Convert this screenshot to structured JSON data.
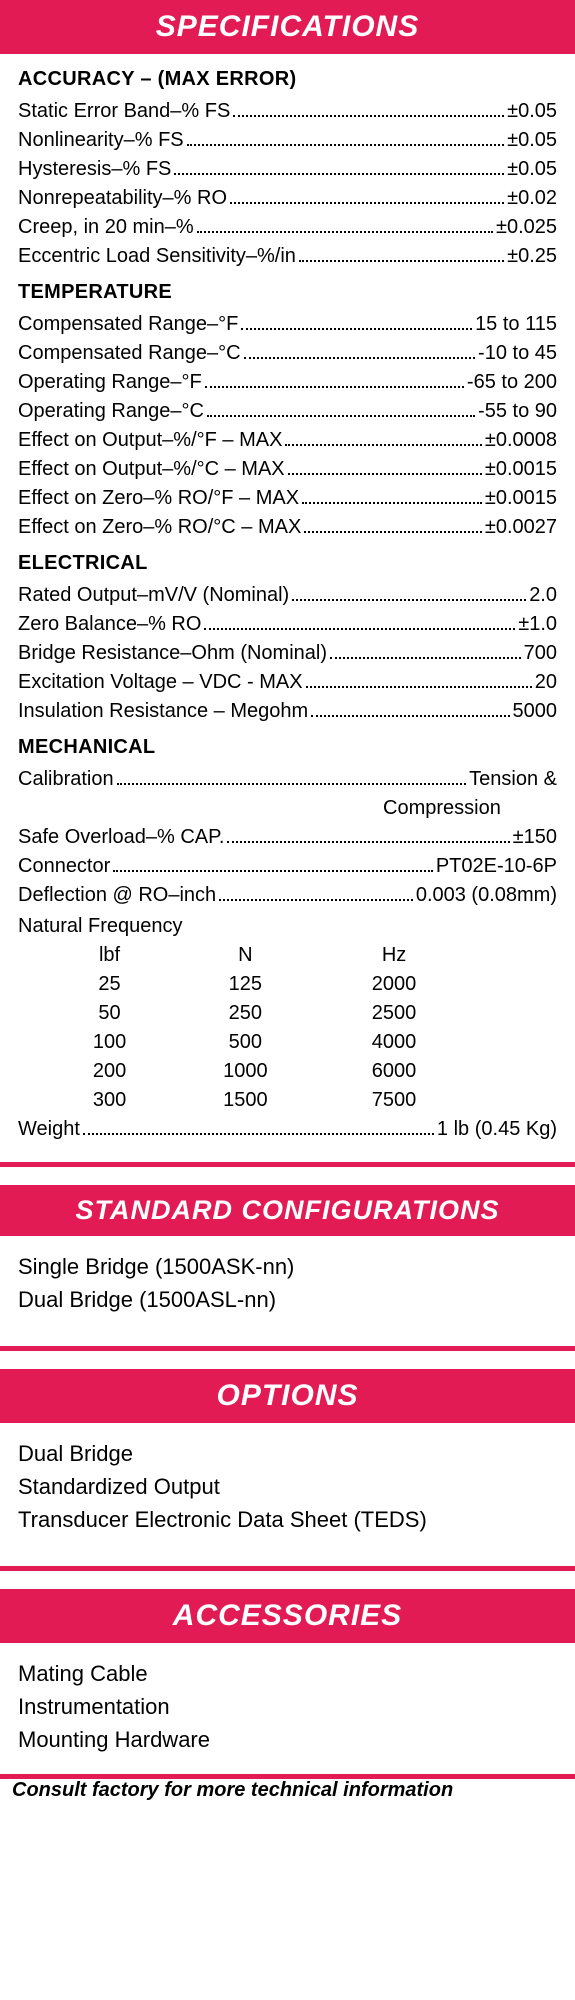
{
  "headers": {
    "specifications": "SPECIFICATIONS",
    "standard_config": "STANDARD CONFIGURATIONS",
    "options": "OPTIONS",
    "accessories": "ACCESSORIES"
  },
  "accuracy": {
    "title": "ACCURACY – (MAX ERROR)",
    "rows": [
      {
        "label": "Static Error Band–% FS",
        "value": "±0.05"
      },
      {
        "label": "Nonlinearity–% FS",
        "value": "±0.05"
      },
      {
        "label": "Hysteresis–% FS",
        "value": "±0.05"
      },
      {
        "label": "Nonrepeatability–% RO",
        "value": "±0.02"
      },
      {
        "label": "Creep, in 20 min–%",
        "value": "±0.025"
      },
      {
        "label": "Eccentric Load Sensitivity–%/in",
        "value": "±0.25"
      }
    ]
  },
  "temperature": {
    "title": "TEMPERATURE",
    "rows": [
      {
        "label": "Compensated Range–°F",
        "value": "15 to 115"
      },
      {
        "label": "Compensated Range–°C",
        "value": "-10 to 45"
      },
      {
        "label": "Operating Range–°F",
        "value": "-65 to 200"
      },
      {
        "label": "Operating Range–°C",
        "value": "-55 to 90"
      },
      {
        "label": "Effect on Output–%/°F – MAX",
        "value": "±0.0008"
      },
      {
        "label": "Effect on Output–%/°C – MAX",
        "value": "±0.0015"
      },
      {
        "label": "Effect on Zero–% RO/°F – MAX",
        "value": "±0.0015"
      },
      {
        "label": "Effect on Zero–% RO/°C – MAX",
        "value": "±0.0027"
      }
    ]
  },
  "electrical": {
    "title": "ELECTRICAL",
    "rows": [
      {
        "label": "Rated Output–mV/V (Nominal)",
        "value": "2.0"
      },
      {
        "label": "Zero Balance–% RO",
        "value": "±1.0"
      },
      {
        "label": "Bridge Resistance–Ohm (Nominal)",
        "value": "700"
      },
      {
        "label": "Excitation Voltage – VDC - MAX",
        "value": "20"
      },
      {
        "label": "Insulation Resistance – Megohm",
        "value": "5000"
      }
    ]
  },
  "mechanical": {
    "title": "MECHANICAL",
    "calibration": {
      "label": "Calibration",
      "value": "Tension &",
      "value2": "Compression"
    },
    "rows": [
      {
        "label": "Safe Overload–% CAP.",
        "value": "±150"
      },
      {
        "label": "Connector",
        "value": "PT02E-10-6P"
      },
      {
        "label": "Deflection @ RO–inch",
        "value": "0.003 (0.08mm)"
      }
    ],
    "nat_freq_label": "Natural Frequency",
    "freq_headers": [
      "lbf",
      "N",
      "Hz"
    ],
    "freq_rows": [
      [
        "25",
        "125",
        "2000"
      ],
      [
        "50",
        "250",
        "2500"
      ],
      [
        "100",
        "500",
        "4000"
      ],
      [
        "200",
        "1000",
        "6000"
      ],
      [
        "300",
        "1500",
        "7500"
      ]
    ],
    "weight": {
      "label": "Weight",
      "value": "1 lb (0.45 Kg)"
    }
  },
  "standard_configurations": [
    "Single Bridge (1500ASK-nn)",
    "Dual Bridge (1500ASL-nn)"
  ],
  "options": [
    "Dual Bridge",
    "Standardized Output",
    "Transducer Electronic Data Sheet (TEDS)"
  ],
  "accessories": [
    "Mating Cable",
    "Instrumentation",
    "Mounting Hardware"
  ],
  "footer": "Consult factory for more technical information",
  "colors": {
    "header_bg": "#e31b54",
    "header_text": "#ffffff",
    "body_text": "#000000",
    "background": "#ffffff"
  }
}
